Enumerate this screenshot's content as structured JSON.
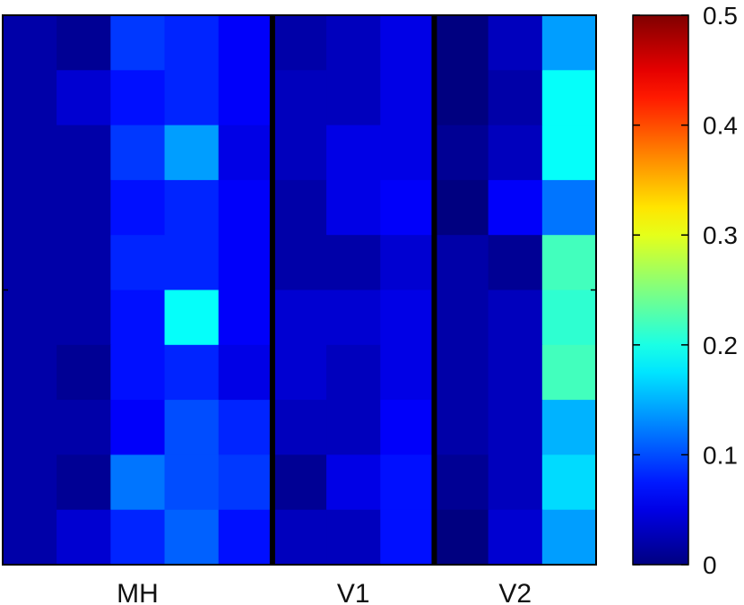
{
  "chart_data": {
    "type": "heatmap",
    "rows": 10,
    "cols": 11,
    "group_labels": [
      "MH",
      "V1",
      "V2"
    ],
    "group_column_spans": [
      [
        0,
        4
      ],
      [
        5,
        7
      ],
      [
        8,
        10
      ]
    ],
    "group_separators_after_col": [
      4,
      7
    ],
    "values": [
      [
        0.02,
        0.01,
        0.09,
        0.08,
        0.06,
        0.02,
        0.03,
        0.05,
        0.0,
        0.03,
        0.14
      ],
      [
        0.02,
        0.04,
        0.07,
        0.08,
        0.06,
        0.03,
        0.03,
        0.05,
        0.0,
        0.02,
        0.19
      ],
      [
        0.02,
        0.02,
        0.09,
        0.14,
        0.05,
        0.03,
        0.05,
        0.05,
        0.01,
        0.03,
        0.19
      ],
      [
        0.02,
        0.02,
        0.07,
        0.08,
        0.06,
        0.02,
        0.05,
        0.06,
        0.0,
        0.06,
        0.12
      ],
      [
        0.02,
        0.02,
        0.08,
        0.08,
        0.06,
        0.02,
        0.02,
        0.04,
        0.02,
        0.01,
        0.22
      ],
      [
        0.02,
        0.02,
        0.07,
        0.19,
        0.06,
        0.04,
        0.04,
        0.05,
        0.02,
        0.03,
        0.21
      ],
      [
        0.02,
        0.01,
        0.07,
        0.08,
        0.05,
        0.04,
        0.03,
        0.05,
        0.02,
        0.03,
        0.22
      ],
      [
        0.02,
        0.02,
        0.06,
        0.1,
        0.08,
        0.03,
        0.03,
        0.06,
        0.02,
        0.03,
        0.15
      ],
      [
        0.02,
        0.01,
        0.12,
        0.1,
        0.09,
        0.01,
        0.05,
        0.07,
        0.01,
        0.03,
        0.17
      ],
      [
        0.02,
        0.04,
        0.08,
        0.11,
        0.07,
        0.03,
        0.03,
        0.07,
        0.0,
        0.04,
        0.14
      ]
    ],
    "colorbar": {
      "min": 0,
      "max": 0.5,
      "ticks": [
        0,
        0.1,
        0.2,
        0.3,
        0.4,
        0.5
      ],
      "tick_labels": [
        "0",
        "0.1",
        "0.2",
        "0.3",
        "0.4",
        "0.5"
      ],
      "colormap": "jet"
    },
    "title": "",
    "xlabel": "",
    "ylabel": "",
    "grid": false
  }
}
